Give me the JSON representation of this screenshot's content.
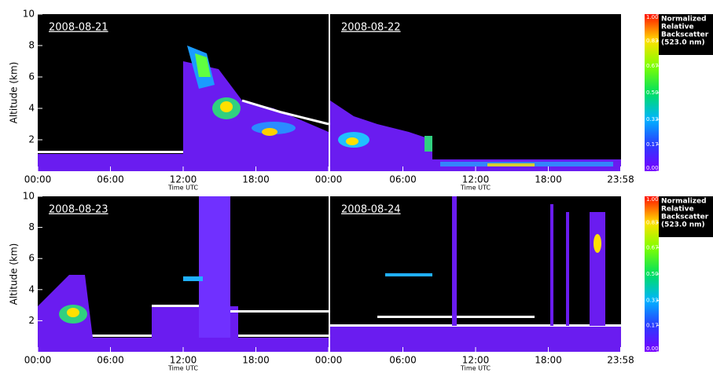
{
  "rows": [
    {
      "y_label": "Altitude (km)",
      "ylim": [
        0,
        10
      ],
      "yticks": [
        2,
        4,
        6,
        8,
        10
      ],
      "panels": [
        {
          "date": "2008-08-21",
          "x_label": "Time UTC",
          "xlim": [
            0,
            24
          ],
          "xticks": [
            {
              "value": 0,
              "label": "00:00"
            },
            {
              "value": 6,
              "label": "06:00"
            },
            {
              "value": 12,
              "label": "12:00"
            },
            {
              "value": 18,
              "label": "18:00"
            },
            {
              "value": 24,
              "label": "00:00"
            }
          ]
        },
        {
          "date": "2008-08-22",
          "x_label": "Time UTC",
          "xlim": [
            0,
            24
          ],
          "xticks": [
            {
              "value": 6,
              "label": "06:00"
            },
            {
              "value": 12,
              "label": "12:00"
            },
            {
              "value": 18,
              "label": "18:00"
            },
            {
              "value": 23.967,
              "label": "23:58"
            }
          ]
        }
      ],
      "colorbar": {
        "title": [
          "Normalized",
          "Relative",
          "Backscatter",
          "(523.0 nm)"
        ],
        "lim": [
          0,
          1
        ],
        "ticks": [
          {
            "value": 0,
            "label": "0.00"
          },
          {
            "value": 0.17,
            "label": "0.17"
          },
          {
            "value": 0.33,
            "label": "0.33"
          },
          {
            "value": 0.5,
            "label": "0.50"
          },
          {
            "value": 0.67,
            "label": "0.67"
          },
          {
            "value": 0.83,
            "label": "0.83"
          },
          {
            "value": 1,
            "label": "1.00"
          }
        ]
      }
    },
    {
      "y_label": "Altitude (km)",
      "ylim": [
        0,
        10
      ],
      "yticks": [
        2,
        4,
        6,
        8,
        10
      ],
      "panels": [
        {
          "date": "2008-08-23",
          "x_label": "Time UTC",
          "xlim": [
            0,
            24
          ],
          "xticks": [
            {
              "value": 0,
              "label": "00:00"
            },
            {
              "value": 6,
              "label": "06:00"
            },
            {
              "value": 12,
              "label": "12:00"
            },
            {
              "value": 18,
              "label": "18:00"
            },
            {
              "value": 24,
              "label": "00:00"
            }
          ]
        },
        {
          "date": "2008-08-24",
          "x_label": "Time UTC",
          "xlim": [
            0,
            24
          ],
          "xticks": [
            {
              "value": 6,
              "label": "06:00"
            },
            {
              "value": 12,
              "label": "12:00"
            },
            {
              "value": 18,
              "label": "18:00"
            },
            {
              "value": 23.967,
              "label": "23:58"
            }
          ]
        }
      ],
      "colorbar": {
        "title": [
          "Normalized",
          "Relative",
          "Backscatter",
          "(523.0 nm)"
        ],
        "lim": [
          0,
          1
        ],
        "ticks": [
          {
            "value": 0,
            "label": "0.00"
          },
          {
            "value": 0.17,
            "label": "0.17"
          },
          {
            "value": 0.33,
            "label": "0.33"
          },
          {
            "value": 0.5,
            "label": "0.50"
          },
          {
            "value": 0.67,
            "label": "0.67"
          },
          {
            "value": 0.83,
            "label": "0.83"
          },
          {
            "value": 1,
            "label": "1.00"
          }
        ]
      }
    }
  ]
}
